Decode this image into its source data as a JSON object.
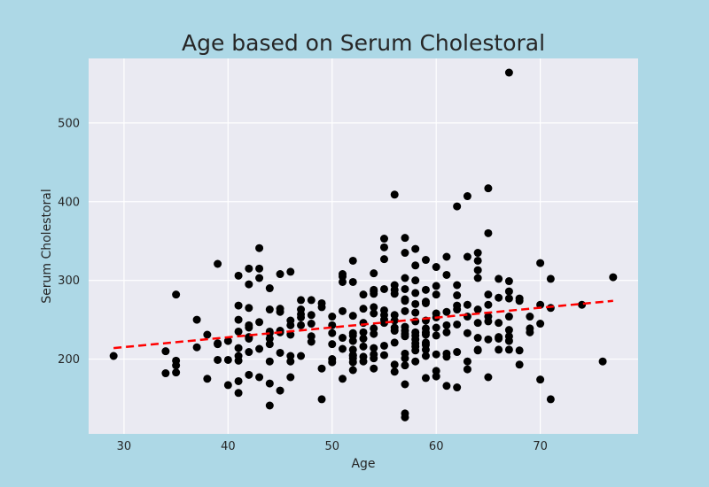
{
  "chart_data": {
    "type": "scatter",
    "title": "Age based on Serum Cholestoral",
    "xlabel": "Age",
    "ylabel": "Serum Cholestoral",
    "xlim": [
      26.6,
      79.4
    ],
    "ylim": [
      105,
      582
    ],
    "xticks": [
      30,
      40,
      50,
      60,
      70
    ],
    "yticks": [
      200,
      300,
      400,
      500
    ],
    "grid": true,
    "colors": {
      "figure_background": "#add8e6",
      "plot_background": "#eaeaf2",
      "grid": "#ffffff",
      "points": "#000000",
      "trendline": "#ff0000"
    },
    "trendline": {
      "style": "dashed",
      "x": [
        29,
        77
      ],
      "y": [
        214,
        274
      ]
    },
    "points": [
      [
        29,
        204
      ],
      [
        34,
        210
      ],
      [
        34,
        182
      ],
      [
        35,
        198
      ],
      [
        35,
        183
      ],
      [
        35,
        192
      ],
      [
        35,
        282
      ],
      [
        37,
        250
      ],
      [
        37,
        215
      ],
      [
        38,
        231
      ],
      [
        38,
        175
      ],
      [
        39,
        321
      ],
      [
        39,
        220
      ],
      [
        39,
        199
      ],
      [
        39,
        219
      ],
      [
        40,
        223
      ],
      [
        40,
        199
      ],
      [
        40,
        167
      ],
      [
        41,
        306
      ],
      [
        41,
        268
      ],
      [
        41,
        250
      ],
      [
        41,
        235
      ],
      [
        41,
        214
      ],
      [
        41,
        204
      ],
      [
        41,
        198
      ],
      [
        41,
        172
      ],
      [
        41,
        157
      ],
      [
        42,
        315
      ],
      [
        42,
        295
      ],
      [
        42,
        265
      ],
      [
        42,
        243
      ],
      [
        42,
        240
      ],
      [
        42,
        228
      ],
      [
        42,
        226
      ],
      [
        42,
        209
      ],
      [
        42,
        180
      ],
      [
        43,
        341
      ],
      [
        43,
        315
      ],
      [
        43,
        303
      ],
      [
        43,
        247
      ],
      [
        43,
        213
      ],
      [
        43,
        177
      ],
      [
        44,
        290
      ],
      [
        44,
        263
      ],
      [
        44,
        235
      ],
      [
        44,
        233
      ],
      [
        44,
        226
      ],
      [
        44,
        219
      ],
      [
        44,
        197
      ],
      [
        44,
        169
      ],
      [
        44,
        141
      ],
      [
        45,
        308
      ],
      [
        45,
        264
      ],
      [
        45,
        260
      ],
      [
        45,
        236
      ],
      [
        45,
        234
      ],
      [
        45,
        208
      ],
      [
        45,
        160
      ],
      [
        46,
        311
      ],
      [
        46,
        249
      ],
      [
        46,
        243
      ],
      [
        46,
        231
      ],
      [
        46,
        204
      ],
      [
        46,
        197
      ],
      [
        46,
        177
      ],
      [
        47,
        275
      ],
      [
        47,
        263
      ],
      [
        47,
        257
      ],
      [
        47,
        253
      ],
      [
        47,
        243
      ],
      [
        47,
        204
      ],
      [
        48,
        275
      ],
      [
        48,
        256
      ],
      [
        48,
        245
      ],
      [
        48,
        229
      ],
      [
        48,
        222
      ],
      [
        49,
        271
      ],
      [
        49,
        266
      ],
      [
        49,
        188
      ],
      [
        49,
        149
      ],
      [
        50,
        254
      ],
      [
        50,
        243
      ],
      [
        50,
        233
      ],
      [
        50,
        219
      ],
      [
        50,
        200
      ],
      [
        50,
        196
      ],
      [
        51,
        308
      ],
      [
        51,
        305
      ],
      [
        51,
        298
      ],
      [
        51,
        261
      ],
      [
        51,
        227
      ],
      [
        51,
        213
      ],
      [
        51,
        175
      ],
      [
        52,
        325
      ],
      [
        52,
        298
      ],
      [
        52,
        255
      ],
      [
        52,
        233
      ],
      [
        52,
        230
      ],
      [
        52,
        223
      ],
      [
        52,
        212
      ],
      [
        52,
        205
      ],
      [
        52,
        204
      ],
      [
        52,
        201
      ],
      [
        52,
        196
      ],
      [
        52,
        186
      ],
      [
        53,
        282
      ],
      [
        53,
        264
      ],
      [
        53,
        246
      ],
      [
        53,
        234
      ],
      [
        53,
        226
      ],
      [
        53,
        216
      ],
      [
        53,
        203
      ],
      [
        53,
        197
      ],
      [
        54,
        309
      ],
      [
        54,
        288
      ],
      [
        54,
        286
      ],
      [
        54,
        283
      ],
      [
        54,
        266
      ],
      [
        54,
        258
      ],
      [
        54,
        239
      ],
      [
        54,
        232
      ],
      [
        54,
        214
      ],
      [
        54,
        206
      ],
      [
        54,
        201
      ],
      [
        54,
        188
      ],
      [
        55,
        353
      ],
      [
        55,
        342
      ],
      [
        55,
        327
      ],
      [
        55,
        289
      ],
      [
        55,
        262
      ],
      [
        55,
        256
      ],
      [
        55,
        250
      ],
      [
        55,
        246
      ],
      [
        55,
        217
      ],
      [
        55,
        205
      ],
      [
        56,
        409
      ],
      [
        56,
        294
      ],
      [
        56,
        288
      ],
      [
        56,
        283
      ],
      [
        56,
        256
      ],
      [
        56,
        249
      ],
      [
        56,
        240
      ],
      [
        56,
        236
      ],
      [
        56,
        221
      ],
      [
        56,
        193
      ],
      [
        56,
        184
      ],
      [
        57,
        354
      ],
      [
        57,
        335
      ],
      [
        57,
        303
      ],
      [
        57,
        289
      ],
      [
        57,
        276
      ],
      [
        57,
        274
      ],
      [
        57,
        261
      ],
      [
        57,
        241
      ],
      [
        57,
        236
      ],
      [
        57,
        232
      ],
      [
        57,
        229
      ],
      [
        57,
        207
      ],
      [
        57,
        201
      ],
      [
        57,
        192
      ],
      [
        57,
        168
      ],
      [
        57,
        131
      ],
      [
        57,
        126
      ],
      [
        58,
        340
      ],
      [
        58,
        319
      ],
      [
        58,
        300
      ],
      [
        58,
        284
      ],
      [
        58,
        270
      ],
      [
        58,
        259
      ],
      [
        58,
        248
      ],
      [
        58,
        234
      ],
      [
        58,
        230
      ],
      [
        58,
        225
      ],
      [
        58,
        220
      ],
      [
        58,
        216
      ],
      [
        58,
        211
      ],
      [
        58,
        197
      ],
      [
        59,
        326
      ],
      [
        59,
        288
      ],
      [
        59,
        273
      ],
      [
        59,
        271
      ],
      [
        59,
        249
      ],
      [
        59,
        239
      ],
      [
        59,
        234
      ],
      [
        59,
        231
      ],
      [
        59,
        221
      ],
      [
        59,
        218
      ],
      [
        59,
        212
      ],
      [
        59,
        204
      ],
      [
        59,
        176
      ],
      [
        60,
        317
      ],
      [
        60,
        293
      ],
      [
        60,
        282
      ],
      [
        60,
        258
      ],
      [
        60,
        253
      ],
      [
        60,
        240
      ],
      [
        60,
        230
      ],
      [
        60,
        206
      ],
      [
        60,
        185
      ],
      [
        60,
        178
      ],
      [
        61,
        330
      ],
      [
        61,
        307
      ],
      [
        61,
        260
      ],
      [
        61,
        243
      ],
      [
        61,
        234
      ],
      [
        61,
        207
      ],
      [
        61,
        203
      ],
      [
        61,
        166
      ],
      [
        62,
        394
      ],
      [
        62,
        294
      ],
      [
        62,
        281
      ],
      [
        62,
        268
      ],
      [
        62,
        263
      ],
      [
        62,
        244
      ],
      [
        62,
        209
      ],
      [
        62,
        164
      ],
      [
        63,
        407
      ],
      [
        63,
        330
      ],
      [
        63,
        269
      ],
      [
        63,
        254
      ],
      [
        63,
        233
      ],
      [
        63,
        197
      ],
      [
        63,
        187
      ],
      [
        64,
        335
      ],
      [
        64,
        325
      ],
      [
        64,
        313
      ],
      [
        64,
        303
      ],
      [
        64,
        263
      ],
      [
        64,
        246
      ],
      [
        64,
        227
      ],
      [
        64,
        212
      ],
      [
        64,
        211
      ],
      [
        65,
        417
      ],
      [
        65,
        360
      ],
      [
        65,
        282
      ],
      [
        65,
        269
      ],
      [
        65,
        254
      ],
      [
        65,
        248
      ],
      [
        65,
        225
      ],
      [
        65,
        177
      ],
      [
        66,
        302
      ],
      [
        66,
        278
      ],
      [
        66,
        246
      ],
      [
        66,
        228
      ],
      [
        66,
        226
      ],
      [
        66,
        212
      ],
      [
        67,
        564
      ],
      [
        67,
        299
      ],
      [
        67,
        286
      ],
      [
        67,
        277
      ],
      [
        67,
        254
      ],
      [
        67,
        237
      ],
      [
        67,
        229
      ],
      [
        67,
        223
      ],
      [
        67,
        212
      ],
      [
        68,
        277
      ],
      [
        68,
        274
      ],
      [
        68,
        211
      ],
      [
        68,
        193
      ],
      [
        69,
        254
      ],
      [
        69,
        239
      ],
      [
        69,
        234
      ],
      [
        70,
        322
      ],
      [
        70,
        269
      ],
      [
        70,
        245
      ],
      [
        70,
        174
      ],
      [
        71,
        302
      ],
      [
        71,
        265
      ],
      [
        71,
        149
      ],
      [
        74,
        269
      ],
      [
        76,
        197
      ],
      [
        77,
        304
      ]
    ]
  }
}
